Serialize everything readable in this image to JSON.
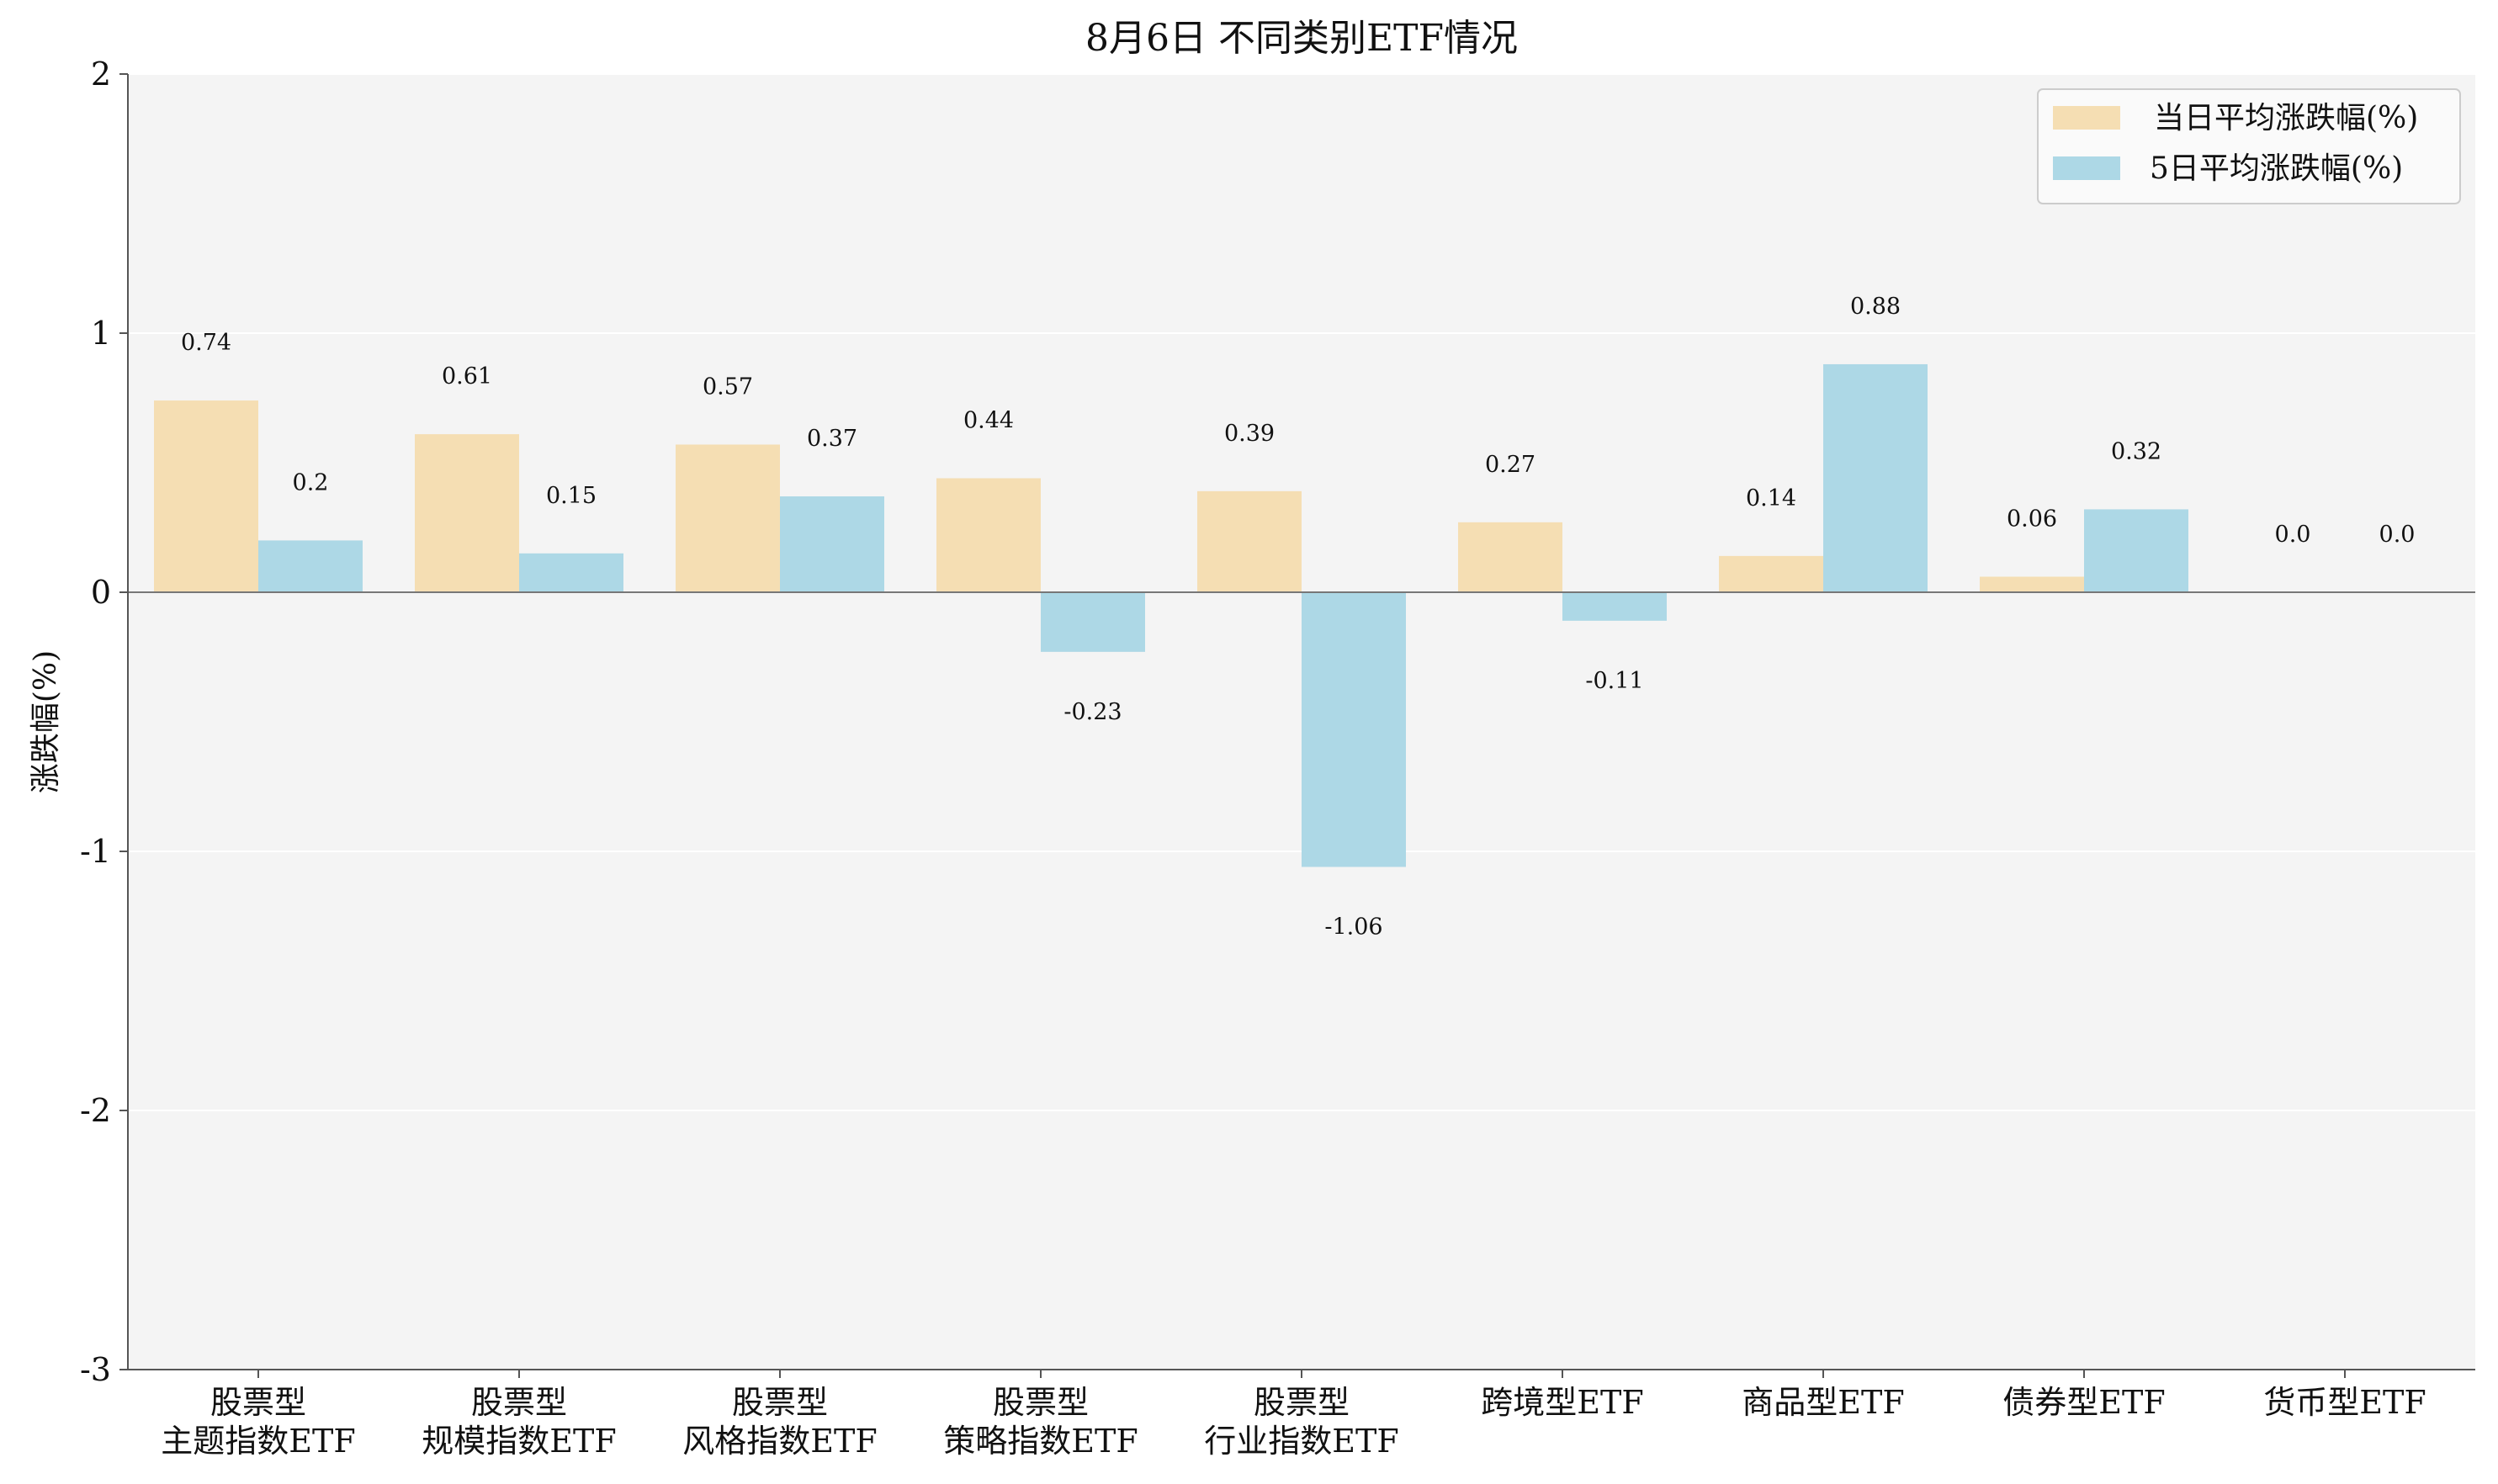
{
  "chart_data": {
    "type": "bar",
    "title": "8月6日 不同类别ETF情况",
    "xlabel": "",
    "ylabel": "涨跌幅(%)",
    "ylim": [
      -3,
      2
    ],
    "yticks": [
      "-3",
      "-2",
      "-1",
      "0",
      "1",
      "2"
    ],
    "categories": [
      [
        "股票型",
        "主题指数ETF"
      ],
      [
        "股票型",
        "规模指数ETF"
      ],
      [
        "股票型",
        "风格指数ETF"
      ],
      [
        "股票型",
        "策略指数ETF"
      ],
      [
        "股票型",
        "行业指数ETF"
      ],
      [
        "跨境型ETF"
      ],
      [
        "商品型ETF"
      ],
      [
        "债券型ETF"
      ],
      [
        "货币型ETF"
      ]
    ],
    "series": [
      {
        "name": "当日平均涨跌幅(%)",
        "color": "#f5deb3",
        "values": [
          0.74,
          0.61,
          0.57,
          0.44,
          0.39,
          0.27,
          0.14,
          0.06,
          0.0
        ],
        "labels": [
          "0.74",
          "0.61",
          "0.57",
          "0.44",
          "0.39",
          "0.27",
          "0.14",
          "0.06",
          "0.0"
        ]
      },
      {
        "name": "5日平均涨跌幅(%)",
        "color": "#add8e6",
        "values": [
          0.2,
          0.15,
          0.37,
          -0.23,
          -1.06,
          -0.11,
          0.88,
          0.32,
          0.0
        ],
        "labels": [
          "0.2",
          "0.15",
          "0.37",
          "-0.23",
          "-1.06",
          "-0.11",
          "0.88",
          "0.32",
          "0.0"
        ]
      }
    ],
    "grid": true,
    "legend_position": "top-right",
    "background_color": "#f4f4f4",
    "zero_line_color": "#777777"
  }
}
